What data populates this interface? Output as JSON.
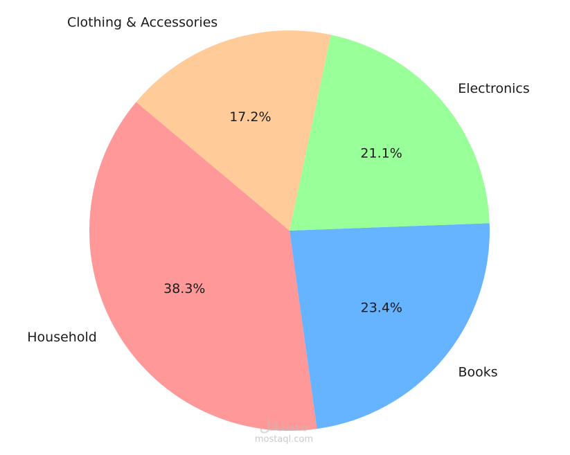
{
  "chart_data": {
    "type": "pie",
    "start_angle_deg": 140,
    "direction": "counterclockwise",
    "slices": [
      {
        "label": "Household",
        "value": 38.3,
        "pct_label": "38.3%",
        "color": "#ff9999"
      },
      {
        "label": "Books",
        "value": 23.4,
        "pct_label": "23.4%",
        "color": "#66b3ff"
      },
      {
        "label": "Electronics",
        "value": 21.1,
        "pct_label": "21.1%",
        "color": "#99ff99"
      },
      {
        "label": "Clothing & Accessories",
        "value": 17.2,
        "pct_label": "17.2%",
        "color": "#ffcc99"
      }
    ]
  },
  "watermark": {
    "script": "مستقل",
    "text": "mostaql.com"
  }
}
